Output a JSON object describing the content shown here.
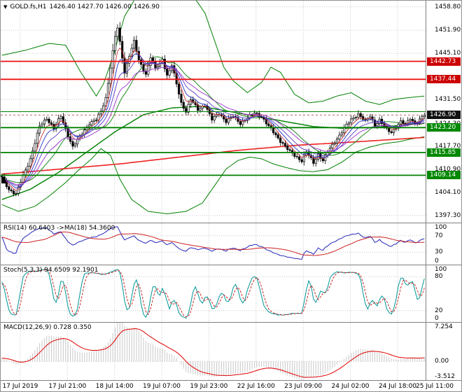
{
  "header": {
    "symbol": "GOLD.fs,H1",
    "ohlc": "1426.40 1427.70 1426.00 1426.90"
  },
  "icons": {
    "symbol_dropdown": "▼"
  },
  "colors": {
    "grid": "#c9c9c9",
    "candle": "#000000",
    "band_green": "#008000",
    "level_green": "#008000",
    "level_red": "#ee1111",
    "ma_red_slow": "#ee2222",
    "sma20": "#1f8b1f",
    "ema_colors": [
      "#cc3333",
      "#2233cc",
      "#5b3cc4",
      "#9932cc"
    ],
    "badge_red": "#cc0000",
    "badge_green": "#008800",
    "badge_black": "#111111",
    "rsi_line": "#2626bb",
    "rsi_signal": "#cc2222",
    "stoch_k": "#009696",
    "stoch_d": "#cc2222",
    "macd_hist": "#c8c8c8",
    "macd_signal": "#e00000"
  },
  "main": {
    "y_ticks": [
      {
        "v": 1458.8,
        "t": "1458.80"
      },
      {
        "v": 1451.9,
        "t": "1451.90"
      },
      {
        "v": 1445.1,
        "t": "1445.10"
      },
      {
        "v": 1431.5,
        "t": "1431.50"
      },
      {
        "v": 1424.3,
        "t": "1424.30"
      },
      {
        "v": 1417.7,
        "t": "1417.70"
      },
      {
        "v": 1410.9,
        "t": "1410.90"
      },
      {
        "v": 1404.1,
        "t": "1404.10"
      },
      {
        "v": 1397.3,
        "t": "1397.30"
      }
    ],
    "levels": [
      {
        "v": 1442.73,
        "t": "1442.73",
        "color": "red",
        "badge": true
      },
      {
        "v": 1437.44,
        "t": "1437.44",
        "color": "red",
        "badge": true
      },
      {
        "v": 1427.9,
        "t": "",
        "color": "green",
        "badge": false
      },
      {
        "v": 1423.2,
        "t": "1423.20",
        "color": "green",
        "badge": true
      },
      {
        "v": 1415.85,
        "t": "1415.85",
        "color": "green",
        "badge": true
      },
      {
        "v": 1409.14,
        "t": "1409.14",
        "color": "green",
        "badge": true
      }
    ],
    "current_price": {
      "v": 1426.9,
      "t": "1426.90"
    },
    "time_ticks": [
      {
        "f": 0.046,
        "t": "17 Jul 2019"
      },
      {
        "f": 0.157,
        "t": "17 Jul 21:00"
      },
      {
        "f": 0.268,
        "t": "18 Jul 14:00"
      },
      {
        "f": 0.379,
        "t": "19 Jul 07:00"
      },
      {
        "f": 0.49,
        "t": "19 Jul 23:00"
      },
      {
        "f": 0.601,
        "t": "22 Jul 16:00"
      },
      {
        "f": 0.712,
        "t": "23 Jul 09:00"
      },
      {
        "f": 0.823,
        "t": "24 Jul 02:00"
      },
      {
        "f": 0.934,
        "t": "24 Jul 18:00"
      },
      {
        "f": 1.045,
        "t": "25 Jul 11:00"
      }
    ]
  },
  "indicators": {
    "rsi": {
      "header": "RSI(14) 60.6403 ->MA(18) 54.3600",
      "period": 14,
      "ma_period": 18,
      "range": [
        0,
        100
      ],
      "ticks": [
        {
          "v": 100,
          "t": "100"
        },
        {
          "v": 70,
          "t": "70"
        },
        {
          "v": 30,
          "t": "30"
        },
        {
          "v": 0,
          "t": "0"
        }
      ],
      "dotted": [
        70,
        30
      ]
    },
    "stoch": {
      "header": "Stoch(5,3,3) 94.6509 92.1901",
      "k": 5,
      "slow": 3,
      "d": 3,
      "range": [
        0,
        100
      ],
      "ticks": [
        {
          "v": 100,
          "t": "100"
        },
        {
          "v": 80,
          "t": "80"
        },
        {
          "v": 20,
          "t": "20"
        },
        {
          "v": 0,
          "t": "0"
        }
      ],
      "dotted": [
        80,
        20
      ]
    },
    "macd": {
      "header": "MACD(12,26,9) 0.728 0.350",
      "fast": 12,
      "slow": 26,
      "signal": 9,
      "range": [
        -3.512,
        7.254
      ],
      "ticks": [
        {
          "v": 7.254,
          "t": "7.254"
        },
        {
          "v": 0,
          "t": "0.00"
        },
        {
          "v": -3.512,
          "t": "-3.512"
        }
      ],
      "dotted": [
        0
      ]
    }
  },
  "chart_data": {
    "type": "candlestick",
    "title": "GOLD.fs,H1",
    "bars": 180,
    "y_range": [
      1395.2,
      1460.6
    ],
    "last_close": 1426.9,
    "price_path": [
      [
        0,
        1408.5
      ],
      [
        3,
        1405.0
      ],
      [
        6,
        1403.6
      ],
      [
        9,
        1409.0
      ],
      [
        12,
        1414.0
      ],
      [
        16,
        1423.5
      ],
      [
        19,
        1426.0
      ],
      [
        22,
        1423.0
      ],
      [
        25,
        1426.5
      ],
      [
        28,
        1421.0
      ],
      [
        30,
        1417.5
      ],
      [
        32,
        1419.5
      ],
      [
        34,
        1421.5
      ],
      [
        37,
        1424.5
      ],
      [
        40,
        1425.5
      ],
      [
        42,
        1428.0
      ],
      [
        44,
        1432.0
      ],
      [
        46,
        1441.0
      ],
      [
        48,
        1450.0
      ],
      [
        49,
        1452.5
      ],
      [
        51,
        1444.0
      ],
      [
        52,
        1439.5
      ],
      [
        54,
        1444.5
      ],
      [
        56,
        1448.5
      ],
      [
        58,
        1443.0
      ],
      [
        61,
        1439.0
      ],
      [
        63,
        1444.0
      ],
      [
        65,
        1440.5
      ],
      [
        68,
        1443.5
      ],
      [
        70,
        1438.5
      ],
      [
        72,
        1441.5
      ],
      [
        74,
        1436.0
      ],
      [
        76,
        1430.5
      ],
      [
        78,
        1428.0
      ],
      [
        80,
        1431.5
      ],
      [
        83,
        1428.5
      ],
      [
        86,
        1430.0
      ],
      [
        89,
        1425.5
      ],
      [
        92,
        1427.5
      ],
      [
        95,
        1425.0
      ],
      [
        98,
        1426.5
      ],
      [
        101,
        1424.5
      ],
      [
        104,
        1426.0
      ],
      [
        107,
        1427.5
      ],
      [
        110,
        1426.5
      ],
      [
        113,
        1423.5
      ],
      [
        116,
        1421.0
      ],
      [
        119,
        1418.5
      ],
      [
        122,
        1416.0
      ],
      [
        125,
        1414.5
      ],
      [
        127,
        1413.5
      ],
      [
        129,
        1416.0
      ],
      [
        132,
        1412.8
      ],
      [
        134,
        1415.5
      ],
      [
        136,
        1413.5
      ],
      [
        139,
        1417.0
      ],
      [
        142,
        1420.0
      ],
      [
        145,
        1423.0
      ],
      [
        148,
        1425.5
      ],
      [
        151,
        1427.3
      ],
      [
        154,
        1425.0
      ],
      [
        156,
        1426.5
      ],
      [
        158,
        1424.0
      ],
      [
        160,
        1425.5
      ],
      [
        163,
        1422.5
      ],
      [
        165,
        1421.8
      ],
      [
        167,
        1423.5
      ],
      [
        169,
        1425.0
      ],
      [
        171,
        1424.0
      ],
      [
        173,
        1426.0
      ],
      [
        175,
        1424.5
      ],
      [
        177,
        1425.5
      ],
      [
        179,
        1426.9
      ]
    ],
    "band_upper": [
      [
        0,
        1444.5
      ],
      [
        10,
        1446.0
      ],
      [
        20,
        1448.0
      ],
      [
        27,
        1447.5
      ],
      [
        33,
        1440.0
      ],
      [
        40,
        1432.5
      ],
      [
        43,
        1436.0
      ],
      [
        47,
        1444.0
      ],
      [
        52,
        1456.0
      ],
      [
        58,
        1463.0
      ],
      [
        70,
        1466.0
      ],
      [
        80,
        1463.0
      ],
      [
        86,
        1457.0
      ],
      [
        90,
        1449.0
      ],
      [
        94,
        1441.0
      ],
      [
        98,
        1437.0
      ],
      [
        104,
        1433.5
      ],
      [
        110,
        1436.5
      ],
      [
        114,
        1441.0
      ],
      [
        118,
        1439.5
      ],
      [
        124,
        1433.0
      ],
      [
        130,
        1430.5
      ],
      [
        136,
        1431.0
      ],
      [
        142,
        1432.5
      ],
      [
        148,
        1433.5
      ],
      [
        154,
        1431.0
      ],
      [
        160,
        1430.0
      ],
      [
        166,
        1431.5
      ],
      [
        172,
        1432.0
      ],
      [
        179,
        1432.5
      ]
    ],
    "band_lower": [
      [
        0,
        1400.5
      ],
      [
        7,
        1398.5
      ],
      [
        14,
        1400.0
      ],
      [
        20,
        1403.0
      ],
      [
        27,
        1407.0
      ],
      [
        33,
        1411.0
      ],
      [
        38,
        1414.0
      ],
      [
        42,
        1417.0
      ],
      [
        46,
        1415.0
      ],
      [
        50,
        1408.0
      ],
      [
        55,
        1402.0
      ],
      [
        62,
        1398.5
      ],
      [
        70,
        1397.8
      ],
      [
        78,
        1398.5
      ],
      [
        85,
        1401.0
      ],
      [
        90,
        1406.0
      ],
      [
        95,
        1411.0
      ],
      [
        100,
        1413.5
      ],
      [
        105,
        1414.5
      ],
      [
        110,
        1414.0
      ],
      [
        115,
        1412.5
      ],
      [
        120,
        1411.5
      ],
      [
        126,
        1410.5
      ],
      [
        132,
        1410.2
      ],
      [
        138,
        1410.8
      ],
      [
        144,
        1413.0
      ],
      [
        150,
        1416.0
      ],
      [
        156,
        1417.5
      ],
      [
        162,
        1418.5
      ],
      [
        168,
        1419.0
      ],
      [
        173,
        1419.8
      ],
      [
        179,
        1420.5
      ]
    ],
    "ma_green": [
      [
        0,
        1402.0
      ],
      [
        12,
        1405.0
      ],
      [
        24,
        1410.0
      ],
      [
        36,
        1416.0
      ],
      [
        48,
        1422.0
      ],
      [
        60,
        1427.0
      ],
      [
        72,
        1429.0
      ],
      [
        84,
        1429.5
      ],
      [
        96,
        1428.0
      ],
      [
        108,
        1426.5
      ],
      [
        120,
        1425.0
      ],
      [
        132,
        1423.5
      ],
      [
        144,
        1423.0
      ],
      [
        156,
        1423.2
      ],
      [
        168,
        1423.8
      ],
      [
        179,
        1424.5
      ]
    ],
    "ma_red": [
      [
        0,
        1409.5
      ],
      [
        25,
        1411.0
      ],
      [
        50,
        1412.5
      ],
      [
        75,
        1414.5
      ],
      [
        100,
        1416.5
      ],
      [
        125,
        1418.0
      ],
      [
        150,
        1419.0
      ],
      [
        179,
        1420.3
      ]
    ],
    "ema_fan": [
      5,
      8,
      13,
      21
    ]
  }
}
